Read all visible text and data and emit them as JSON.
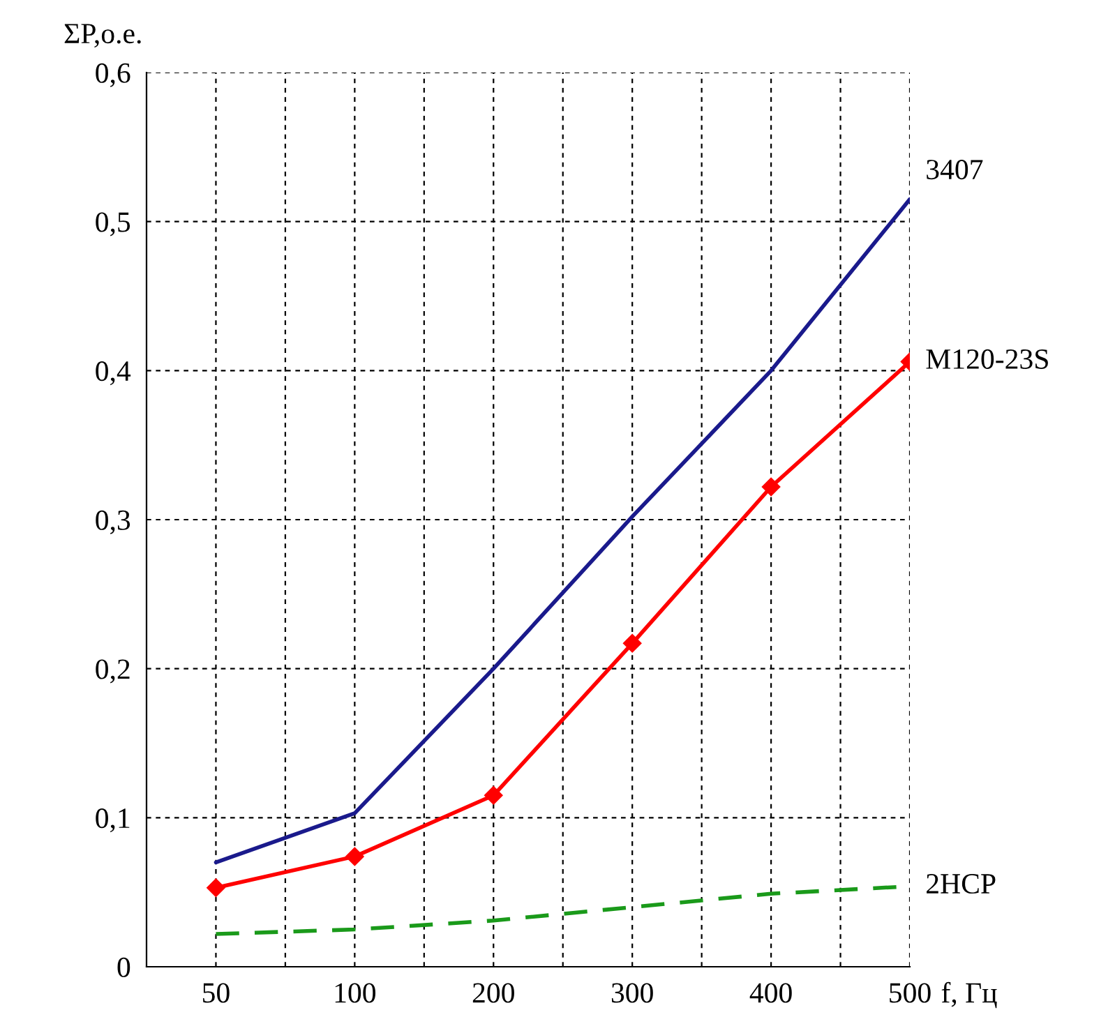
{
  "chart_data": {
    "type": "line",
    "xlabel": "f, Гц",
    "ylabel": "ΣP,o.e.",
    "categories": [
      "50",
      "100",
      "200",
      "300",
      "400",
      "500"
    ],
    "series": [
      {
        "name": "3407",
        "color": "#1a1a8c",
        "values": [
          0.07,
          0.103,
          0.2,
          0.302,
          0.4,
          0.515
        ],
        "marker": "none",
        "line_style": "solid"
      },
      {
        "name": "M120-23S",
        "color": "#ff0000",
        "values": [
          0.053,
          0.074,
          0.115,
          0.217,
          0.322,
          0.406
        ],
        "marker": "diamond",
        "line_style": "solid"
      },
      {
        "name": "2HCP",
        "color": "#1a9a1a",
        "values": [
          0.022,
          0.025,
          0.031,
          0.04,
          0.049,
          0.054
        ],
        "marker": "none",
        "line_style": "dashed"
      }
    ],
    "ylim": [
      0,
      0.6
    ],
    "yticks": [
      0,
      {
        "value": 0.1,
        "label": "0,1"
      },
      {
        "value": 0.2,
        "label": "0,2"
      },
      {
        "value": 0.3,
        "label": "0,3"
      },
      {
        "value": 0.4,
        "label": "0,4"
      },
      {
        "value": 0.5,
        "label": "0,5"
      },
      {
        "value": 0.6,
        "label": "0,6"
      }
    ],
    "grid": true
  }
}
